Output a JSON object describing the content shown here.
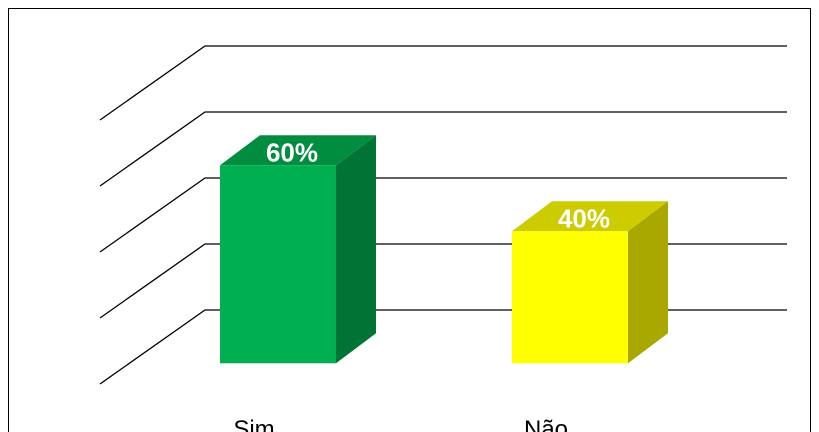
{
  "chart_data": {
    "type": "bar3d",
    "categories": [
      "Sim",
      "Não"
    ],
    "values": [
      60,
      40
    ],
    "value_labels": [
      "60%",
      "40%"
    ],
    "colors": [
      "#00b050",
      "#ffff00"
    ],
    "ylim": [
      0,
      80
    ],
    "yticks": [
      0,
      20,
      40,
      60,
      80
    ],
    "grid": true
  }
}
